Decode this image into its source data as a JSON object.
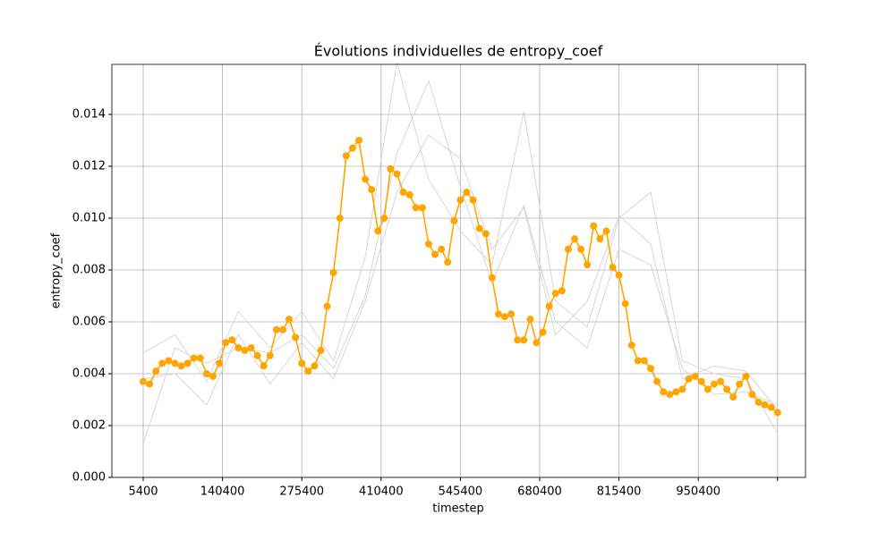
{
  "chart_data": {
    "type": "line",
    "title": "Évolutions individuelles de entropy_coef",
    "x_label": "timestep",
    "y_label": "entropy_coef",
    "x": [
      5400,
      16200,
      27000,
      37800,
      48600,
      59400,
      70200,
      81000,
      91800,
      102600,
      113400,
      124200,
      135000,
      145800,
      156600,
      167400,
      178200,
      189000,
      199800,
      210600,
      221400,
      232200,
      243000,
      253800,
      264600,
      275400,
      286200,
      297000,
      307800,
      318600,
      329400,
      340200,
      351000,
      361800,
      372600,
      383400,
      394200,
      405000,
      415800,
      426600,
      437400,
      448200,
      459000,
      469800,
      480600,
      491400,
      502200,
      513000,
      523800,
      534600,
      545400,
      556200,
      567000,
      577800,
      588600,
      599400,
      610200,
      621000,
      631800,
      642600,
      653400,
      664200,
      675000,
      685800,
      696600,
      707400,
      718200,
      729000,
      739800,
      750600,
      761400,
      772200,
      783000,
      793800,
      804600,
      815400,
      826200,
      837000,
      847800,
      858600,
      869400,
      880200,
      891000,
      901800,
      912600,
      923400,
      934200,
      945000,
      955800,
      966600,
      977400,
      988200,
      999000,
      1009800,
      1020600,
      1031400,
      1042200,
      1053000,
      1063800,
      1074600,
      1085400
    ],
    "series": [
      {
        "color": "#d3d3d3",
        "x": [
          5400,
          59400,
          113400,
          167400,
          221400,
          275400,
          329400,
          383400,
          437400,
          491400,
          545400,
          599400,
          653400,
          707400,
          761400,
          815400,
          869400,
          923400,
          977400,
          1031400,
          1085400
        ],
        "values": [
          0.0048,
          0.0055,
          0.0037,
          0.0064,
          0.005,
          0.0064,
          0.0045,
          0.0085,
          0.016,
          0.0115,
          0.0095,
          0.0082,
          0.0141,
          0.0068,
          0.0058,
          0.01,
          0.011,
          0.0045,
          0.004,
          0.0038,
          0.0017
        ]
      },
      {
        "color": "#d3d3d3",
        "x": [
          5400,
          59400,
          113400,
          167400,
          221400,
          275400,
          329400,
          383400,
          437400,
          491400,
          545400,
          599400,
          653400,
          707400,
          761400,
          815400,
          869400,
          923400,
          977400,
          1031400,
          1085400
        ],
        "values": [
          0.0013,
          0.005,
          0.0044,
          0.005,
          0.0048,
          0.0055,
          0.0042,
          0.007,
          0.0125,
          0.0153,
          0.0112,
          0.0075,
          0.0105,
          0.006,
          0.005,
          0.0088,
          0.0082,
          0.0042,
          0.0032,
          0.0033,
          0.0028
        ]
      },
      {
        "color": "#d3d3d3",
        "x": [
          5400,
          59400,
          113400,
          167400,
          221400,
          275400,
          329400,
          383400,
          437400,
          491400,
          545400,
          599400,
          653400,
          707400,
          761400,
          815400,
          869400,
          923400,
          977400,
          1031400,
          1085400
        ],
        "values": [
          0.0038,
          0.004,
          0.0028,
          0.0055,
          0.0036,
          0.0052,
          0.0038,
          0.0068,
          0.011,
          0.0132,
          0.0123,
          0.0088,
          0.0104,
          0.0055,
          0.0068,
          0.0101,
          0.009,
          0.0038,
          0.0043,
          0.0041,
          0.0026
        ]
      },
      {
        "color": "#ffa500",
        "markers": true,
        "values": [
          0.0037,
          0.0036,
          0.0041,
          0.0044,
          0.0045,
          0.0044,
          0.0043,
          0.0044,
          0.0046,
          0.0046,
          0.004,
          0.0039,
          0.0044,
          0.0052,
          0.0053,
          0.005,
          0.0049,
          0.005,
          0.0047,
          0.0043,
          0.0047,
          0.0057,
          0.0057,
          0.0061,
          0.0054,
          0.0044,
          0.0041,
          0.0043,
          0.0049,
          0.0066,
          0.0079,
          0.01,
          0.0124,
          0.0127,
          0.013,
          0.0115,
          0.0111,
          0.0095,
          0.01,
          0.0119,
          0.0117,
          0.011,
          0.0109,
          0.0104,
          0.0104,
          0.009,
          0.0086,
          0.0088,
          0.0083,
          0.0099,
          0.0107,
          0.011,
          0.0107,
          0.0096,
          0.0094,
          0.0077,
          0.0063,
          0.0062,
          0.0063,
          0.0053,
          0.0053,
          0.0061,
          0.0052,
          0.0056,
          0.0066,
          0.0071,
          0.0072,
          0.0088,
          0.0092,
          0.0088,
          0.0082,
          0.0097,
          0.0092,
          0.0095,
          0.0081,
          0.0078,
          0.0067,
          0.0051,
          0.0045,
          0.0045,
          0.0042,
          0.0037,
          0.0033,
          0.0032,
          0.0033,
          0.0034,
          0.0038,
          0.0039,
          0.0037,
          0.0034,
          0.0036,
          0.0037,
          0.0034,
          0.0031,
          0.0036,
          0.0039,
          0.0032,
          0.0029,
          0.0028,
          0.0027,
          0.0025
        ]
      }
    ],
    "xlim": [
      -47930,
      1132940
    ],
    "ylim": [
      0,
      0.01593
    ],
    "xticks": [
      5400,
      140400,
      275400,
      410400,
      545400,
      680400,
      815400,
      950400,
      {
        "value": 1085400,
        "label": null
      }
    ],
    "yticks": [
      {
        "value": 0,
        "label": "0.000"
      },
      {
        "value": 0.002,
        "label": "0.002"
      },
      {
        "value": 0.004,
        "label": "0.004"
      },
      {
        "value": 0.006,
        "label": "0.006"
      },
      {
        "value": 0.008,
        "label": "0.008"
      },
      {
        "value": 0.01,
        "label": "0.010"
      },
      {
        "value": 0.012,
        "label": "0.012"
      },
      {
        "value": 0.014,
        "label": "0.014"
      }
    ],
    "grid": true
  }
}
